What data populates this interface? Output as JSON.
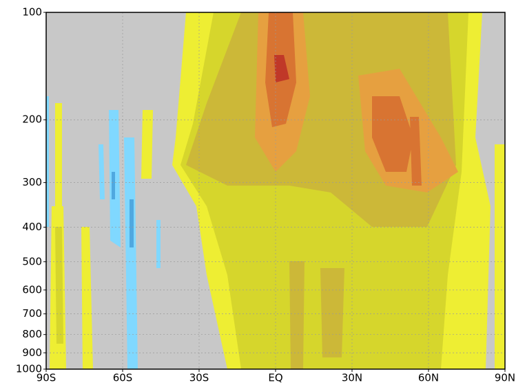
{
  "chart_data": {
    "type": "contour",
    "xlim": [
      -90,
      90
    ],
    "xticks": [
      {
        "value": -90,
        "label": "90S"
      },
      {
        "value": -60,
        "label": "60S"
      },
      {
        "value": -30,
        "label": "30S"
      },
      {
        "value": 0,
        "label": "EQ"
      },
      {
        "value": 30,
        "label": "30N"
      },
      {
        "value": 60,
        "label": "60N"
      },
      {
        "value": 90,
        "label": "90N"
      }
    ],
    "ylim": [
      1000,
      100
    ],
    "yticks": [
      100,
      200,
      300,
      400,
      500,
      600,
      700,
      800,
      900,
      1000
    ],
    "log_y": true,
    "grid": true
  }
}
